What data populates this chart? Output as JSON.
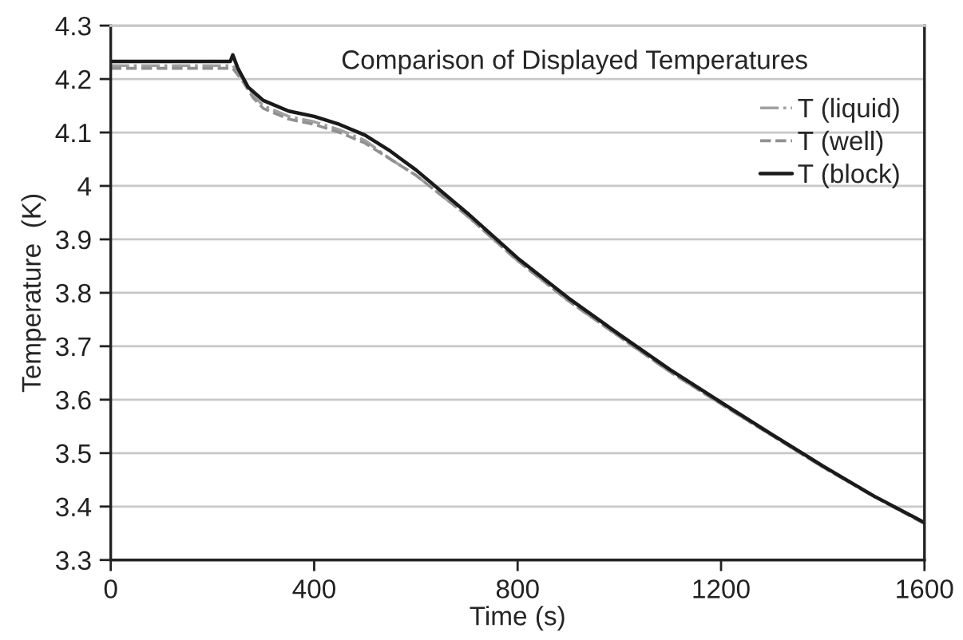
{
  "chart_data": {
    "type": "line",
    "title": "Comparison of Displayed Temperatures",
    "xlabel": "Time (s)",
    "ylabel": "Temperature  (K)",
    "xlim": [
      0,
      1600
    ],
    "xticks": [
      0,
      400,
      800,
      1200,
      1600
    ],
    "ylim": [
      3.3,
      4.3
    ],
    "yticks": [
      3.3,
      3.4,
      3.5,
      3.6,
      3.7,
      3.8,
      {
        "value": 3.9,
        "label": "3.9"
      },
      {
        "value": 4.0,
        "label": "4"
      },
      4.1,
      4.2,
      4.3
    ],
    "grid": "y",
    "legend": "right",
    "series": [
      {
        "name": "T (liquid)",
        "color": "#a0a0a0",
        "line_style": "dashdot",
        "x": [
          0,
          100,
          200,
          240,
          260,
          280,
          300,
          350,
          400,
          450,
          500,
          550,
          600,
          700,
          800,
          900,
          1000,
          1100,
          1200,
          1300,
          1400,
          1500,
          1600
        ],
        "values": [
          4.225,
          4.225,
          4.225,
          4.225,
          4.2,
          4.17,
          4.15,
          4.13,
          4.12,
          4.105,
          4.085,
          4.05,
          4.02,
          3.945,
          3.86,
          3.785,
          3.718,
          3.652,
          3.592,
          3.533,
          3.474,
          3.419,
          3.368
        ]
      },
      {
        "name": "T (well)",
        "color": "#909090",
        "line_style": "dashed",
        "x": [
          0,
          100,
          200,
          240,
          260,
          280,
          300,
          350,
          400,
          450,
          500,
          550,
          600,
          700,
          800,
          900,
          1000,
          1100,
          1200,
          1300,
          1400,
          1500,
          1600
        ],
        "values": [
          4.22,
          4.22,
          4.22,
          4.22,
          4.195,
          4.165,
          4.145,
          4.125,
          4.115,
          4.1,
          4.08,
          4.05,
          4.02,
          3.945,
          3.86,
          3.785,
          3.718,
          3.652,
          3.592,
          3.533,
          3.474,
          3.419,
          3.368
        ]
      },
      {
        "name": "T (block)",
        "color": "#1a1a1a",
        "line_style": "solid",
        "x": [
          0,
          100,
          200,
          235,
          240,
          250,
          270,
          300,
          350,
          400,
          450,
          500,
          550,
          600,
          700,
          800,
          900,
          1000,
          1100,
          1200,
          1300,
          1400,
          1500,
          1600
        ],
        "values": [
          4.233,
          4.233,
          4.233,
          4.233,
          4.245,
          4.22,
          4.185,
          4.16,
          4.14,
          4.13,
          4.115,
          4.095,
          4.065,
          4.03,
          3.95,
          3.865,
          3.79,
          3.722,
          3.656,
          3.595,
          3.535,
          3.476,
          3.42,
          3.37
        ]
      }
    ]
  }
}
